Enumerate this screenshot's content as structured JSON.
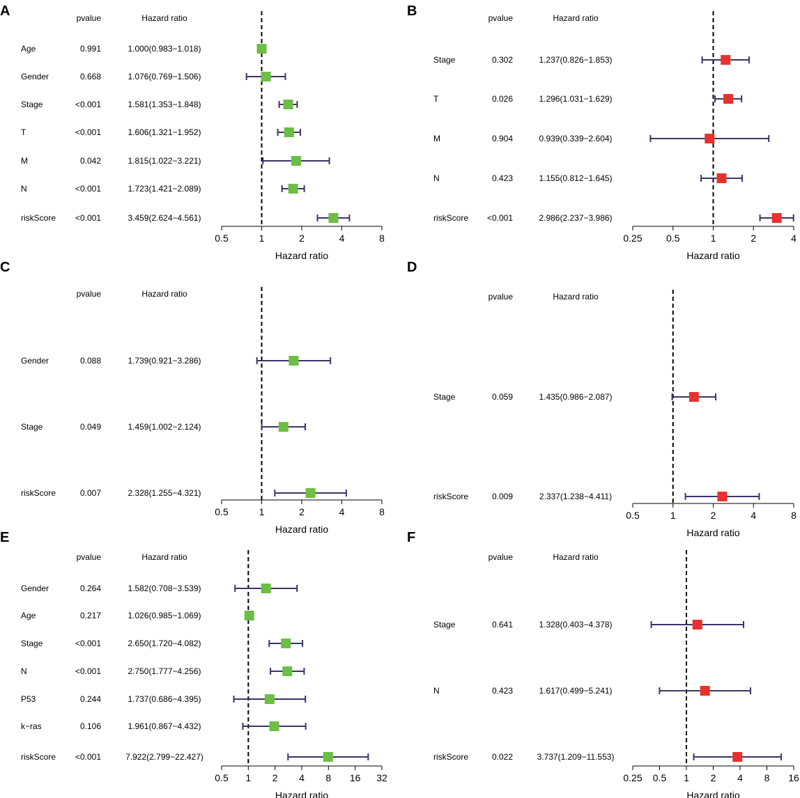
{
  "figure": {
    "panels": [
      "A",
      "B",
      "C",
      "D",
      "E",
      "F"
    ]
  },
  "chart_data": [
    {
      "panel": "A",
      "type": "forest",
      "header_pvalue": "pvalue",
      "header_hr": "Hazard ratio",
      "xlabel": "Hazard ratio",
      "scale": "log2",
      "xlim": [
        0.5,
        8
      ],
      "ticks": [
        "0.5",
        "1",
        "2",
        "4",
        "8"
      ],
      "reference": 1,
      "marker_color": "#6cbe45",
      "rows": [
        {
          "name": "Age",
          "pvalue": "0.991",
          "hr_text": "1.000(0.983−1.018)",
          "hr": 1.0,
          "lo": 0.983,
          "hi": 1.018
        },
        {
          "name": "Gender",
          "pvalue": "0.668",
          "hr_text": "1.076(0.769−1.506)",
          "hr": 1.076,
          "lo": 0.769,
          "hi": 1.506
        },
        {
          "name": "Stage",
          "pvalue": "<0.001",
          "hr_text": "1.581(1.353−1.848)",
          "hr": 1.581,
          "lo": 1.353,
          "hi": 1.848
        },
        {
          "name": "T",
          "pvalue": "<0.001",
          "hr_text": "1.606(1.321−1.952)",
          "hr": 1.606,
          "lo": 1.321,
          "hi": 1.952
        },
        {
          "name": "M",
          "pvalue": "0.042",
          "hr_text": "1.815(1.022−3.221)",
          "hr": 1.815,
          "lo": 1.022,
          "hi": 3.221
        },
        {
          "name": "N",
          "pvalue": "<0.001",
          "hr_text": "1.723(1.421−2.089)",
          "hr": 1.723,
          "lo": 1.421,
          "hi": 2.089
        },
        {
          "name": "riskScore",
          "pvalue": "<0.001",
          "hr_text": "3.459(2.624−4.561)",
          "hr": 3.459,
          "lo": 2.624,
          "hi": 4.561
        }
      ]
    },
    {
      "panel": "B",
      "type": "forest",
      "header_pvalue": "pvalue",
      "header_hr": "Hazard ratio",
      "xlabel": "Hazard ratio",
      "scale": "log2",
      "xlim": [
        0.25,
        4
      ],
      "ticks": [
        "0.25",
        "0.5",
        "1",
        "2",
        "4"
      ],
      "reference": 1,
      "marker_color": "#e8312f",
      "rows": [
        {
          "name": "Stage",
          "pvalue": "0.302",
          "hr_text": "1.237(0.826−1.853)",
          "hr": 1.237,
          "lo": 0.826,
          "hi": 1.853
        },
        {
          "name": "T",
          "pvalue": "0.026",
          "hr_text": "1.296(1.031−1.629)",
          "hr": 1.296,
          "lo": 1.031,
          "hi": 1.629
        },
        {
          "name": "M",
          "pvalue": "0.904",
          "hr_text": "0.939(0.339−2.604)",
          "hr": 0.939,
          "lo": 0.339,
          "hi": 2.604
        },
        {
          "name": "N",
          "pvalue": "0.423",
          "hr_text": "1.155(0.812−1.645)",
          "hr": 1.155,
          "lo": 0.812,
          "hi": 1.645
        },
        {
          "name": "riskScore",
          "pvalue": "<0.001",
          "hr_text": "2.986(2.237−3.986)",
          "hr": 2.986,
          "lo": 2.237,
          "hi": 3.986
        }
      ]
    },
    {
      "panel": "C",
      "type": "forest",
      "header_pvalue": "pvalue",
      "header_hr": "Hazard ratio",
      "xlabel": "Hazard ratio",
      "scale": "log2",
      "xlim": [
        0.5,
        8
      ],
      "ticks": [
        "0.5",
        "1",
        "2",
        "4",
        "8"
      ],
      "reference": 1,
      "marker_color": "#6cbe45",
      "rows": [
        {
          "name": "Gender",
          "pvalue": "0.088",
          "hr_text": "1.739(0.921−3.286)",
          "hr": 1.739,
          "lo": 0.921,
          "hi": 3.286
        },
        {
          "name": "Stage",
          "pvalue": "0.049",
          "hr_text": "1.459(1.002−2.124)",
          "hr": 1.459,
          "lo": 1.002,
          "hi": 2.124
        },
        {
          "name": "riskScore",
          "pvalue": "0.007",
          "hr_text": "2.328(1.255−4.321)",
          "hr": 2.328,
          "lo": 1.255,
          "hi": 4.321
        }
      ]
    },
    {
      "panel": "D",
      "type": "forest",
      "header_pvalue": "pvalue",
      "header_hr": "Hazard ratio",
      "xlabel": "Hazard ratio",
      "scale": "log2",
      "xlim": [
        0.5,
        8
      ],
      "ticks": [
        "0.5",
        "1",
        "2",
        "4",
        "8"
      ],
      "reference": 1,
      "marker_color": "#e8312f",
      "rows": [
        {
          "name": "Stage",
          "pvalue": "0.059",
          "hr_text": "1.435(0.986−2.087)",
          "hr": 1.435,
          "lo": 0.986,
          "hi": 2.087
        },
        {
          "name": "riskScore",
          "pvalue": "0.009",
          "hr_text": "2.337(1.238−4.411)",
          "hr": 2.337,
          "lo": 1.238,
          "hi": 4.411
        }
      ]
    },
    {
      "panel": "E",
      "type": "forest",
      "header_pvalue": "pvalue",
      "header_hr": "Hazard ratio",
      "xlabel": "Hazard ratio",
      "scale": "log2",
      "xlim": [
        0.5,
        32
      ],
      "ticks": [
        "0.5",
        "1",
        "2",
        "4",
        "8",
        "16",
        "32"
      ],
      "reference": 1,
      "marker_color": "#6cbe45",
      "rows": [
        {
          "name": "Gender",
          "pvalue": "0.264",
          "hr_text": "1.582(0.708−3.539)",
          "hr": 1.582,
          "lo": 0.708,
          "hi": 3.539
        },
        {
          "name": "Age",
          "pvalue": "0.217",
          "hr_text": "1.026(0.985−1.069)",
          "hr": 1.026,
          "lo": 0.985,
          "hi": 1.069
        },
        {
          "name": "Stage",
          "pvalue": "<0.001",
          "hr_text": "2.650(1.720−4.082)",
          "hr": 2.65,
          "lo": 1.72,
          "hi": 4.082
        },
        {
          "name": "N",
          "pvalue": "<0.001",
          "hr_text": "2.750(1.777−4.256)",
          "hr": 2.75,
          "lo": 1.777,
          "hi": 4.256
        },
        {
          "name": "P53",
          "pvalue": "0.244",
          "hr_text": "1.737(0.686−4.395)",
          "hr": 1.737,
          "lo": 0.686,
          "hi": 4.395
        },
        {
          "name": "k−ras",
          "pvalue": "0.106",
          "hr_text": "1.961(0.867−4.432)",
          "hr": 1.961,
          "lo": 0.867,
          "hi": 4.432
        },
        {
          "name": "riskScore",
          "pvalue": "<0.001",
          "hr_text": "7.922(2.799−22.427)",
          "hr": 7.922,
          "lo": 2.799,
          "hi": 22.427
        }
      ]
    },
    {
      "panel": "F",
      "type": "forest",
      "header_pvalue": "pvalue",
      "header_hr": "Hazard ratio",
      "xlabel": "Hazard ratio",
      "scale": "log2",
      "xlim": [
        0.25,
        16
      ],
      "ticks": [
        "0.25",
        "0.5",
        "1",
        "2",
        "4",
        "8",
        "16"
      ],
      "reference": 1,
      "marker_color": "#e8312f",
      "rows": [
        {
          "name": "Stage",
          "pvalue": "0.641",
          "hr_text": "1.328(0.403−4.378)",
          "hr": 1.328,
          "lo": 0.403,
          "hi": 4.378
        },
        {
          "name": "N",
          "pvalue": "0.423",
          "hr_text": "1.617(0.499−5.241)",
          "hr": 1.617,
          "lo": 0.499,
          "hi": 5.241
        },
        {
          "name": "riskScore",
          "pvalue": "0.022",
          "hr_text": "3.737(1.209−11.553)",
          "hr": 3.737,
          "lo": 1.209,
          "hi": 11.553
        }
      ]
    }
  ]
}
